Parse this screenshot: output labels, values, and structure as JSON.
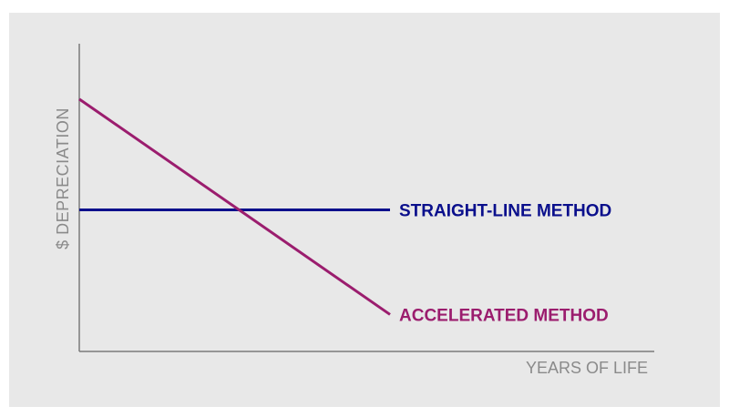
{
  "chart_data": {
    "type": "line",
    "xlabel": "YEARS OF LIFE",
    "ylabel": "$ DEPRECIATION",
    "xlim": [
      0,
      10
    ],
    "ylim": [
      0,
      10
    ],
    "grid": false,
    "legend": "inline-right",
    "series": [
      {
        "name": "STRAIGHT-LINE METHOD",
        "color": "#0a0f8c",
        "x": [
          0,
          10
        ],
        "y": [
          4.6,
          4.6
        ]
      },
      {
        "name": "ACCELERATED METHOD",
        "color": "#9b1d6e",
        "x": [
          0,
          10
        ],
        "y": [
          8.2,
          1.2
        ]
      }
    ]
  },
  "colors": {
    "background": "#e8e8e8",
    "axis": "#7a7a7a",
    "axis_label": "#8a8a8a"
  }
}
